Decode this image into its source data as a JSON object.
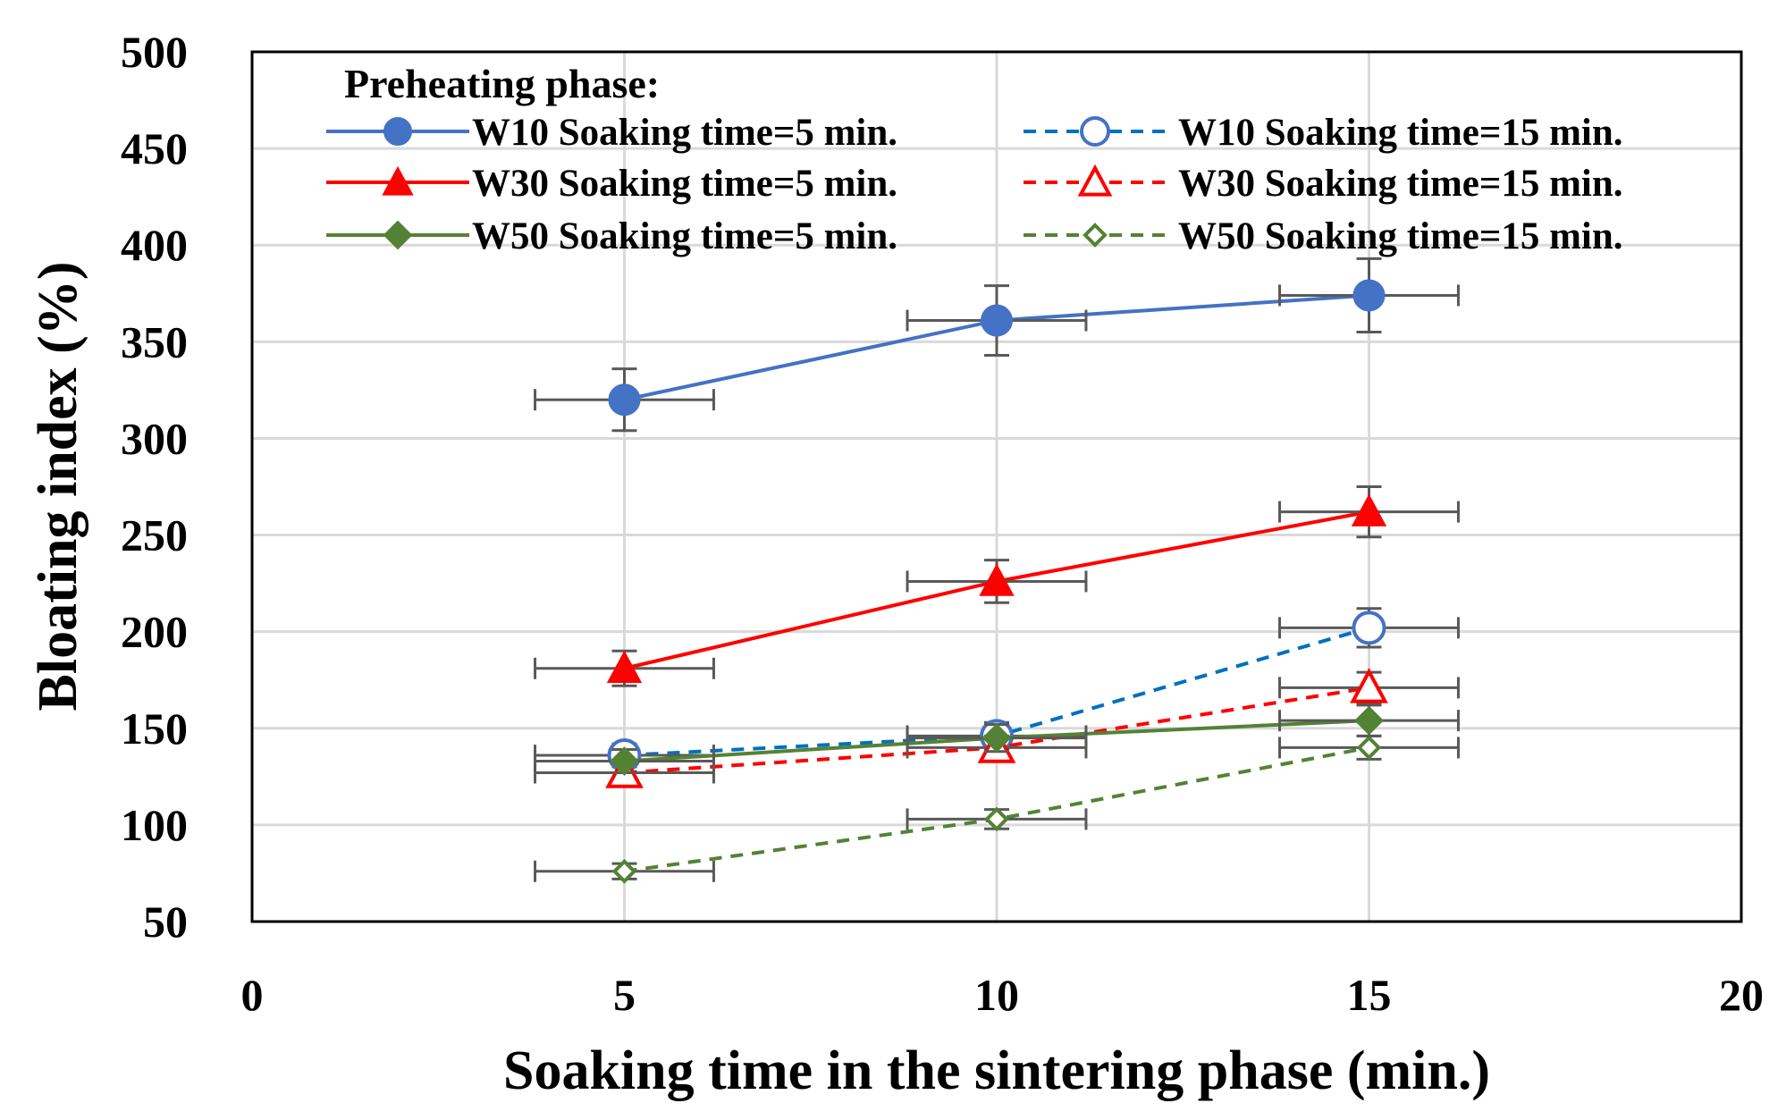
{
  "chart_data": {
    "type": "line",
    "xlabel": "Soaking time in the sintering phase  (min.)",
    "ylabel": "Bloating index (%)",
    "xlim": [
      0,
      20
    ],
    "ylim": [
      50,
      500
    ],
    "xticks": [
      0,
      5,
      10,
      15,
      20
    ],
    "yticks": [
      50,
      100,
      150,
      200,
      250,
      300,
      350,
      400,
      450,
      500
    ],
    "xtick_labels": [
      "0",
      "5",
      "10",
      "15",
      "20"
    ],
    "ytick_labels": [
      "50",
      "100",
      "150",
      "200",
      "250",
      "300",
      "350",
      "400",
      "450",
      "500"
    ],
    "grid": true,
    "legend": {
      "title": "Preheating phase:",
      "placement": "top"
    },
    "x_error": 1.2,
    "series": [
      {
        "name": "W10 Soaking time=5 min.",
        "color": "#4472C4",
        "dash": "solid",
        "marker": "circle",
        "filled": true,
        "x": [
          5,
          10,
          15
        ],
        "y": [
          320,
          361,
          374
        ],
        "yerr": [
          16,
          18,
          19
        ]
      },
      {
        "name": "W30 Soaking time=5 min.",
        "color": "#FF0000",
        "dash": "solid",
        "marker": "triangle",
        "filled": true,
        "x": [
          5,
          10,
          15
        ],
        "y": [
          181,
          226,
          262
        ],
        "yerr": [
          9,
          11,
          13
        ]
      },
      {
        "name": "W50 Soaking time=5 min.",
        "color": "#548235",
        "dash": "solid",
        "marker": "diamond",
        "filled": true,
        "x": [
          5,
          10,
          15
        ],
        "y": [
          133,
          145,
          154
        ],
        "yerr": [
          6,
          7,
          8
        ]
      },
      {
        "name": "W10 Soaking time=15 min.",
        "color": "#4472C4",
        "line_color": "#0070C0",
        "dash": "dashed",
        "marker": "circle",
        "filled": false,
        "x": [
          5,
          10,
          15
        ],
        "y": [
          136,
          146,
          202
        ],
        "yerr": [
          6,
          7,
          10
        ]
      },
      {
        "name": "W30 Soaking time=15 min.",
        "color": "#FF0000",
        "dash": "dashed",
        "marker": "triangle",
        "filled": false,
        "x": [
          5,
          10,
          15
        ],
        "y": [
          127,
          140,
          171
        ],
        "yerr": [
          5,
          6,
          8
        ]
      },
      {
        "name": "W50 Soaking time=15 min.",
        "color": "#548235",
        "dash": "dashed",
        "marker": "diamond",
        "filled": false,
        "x": [
          5,
          10,
          15
        ],
        "y": [
          76,
          103,
          140
        ],
        "yerr": [
          4,
          5,
          6
        ]
      }
    ]
  }
}
